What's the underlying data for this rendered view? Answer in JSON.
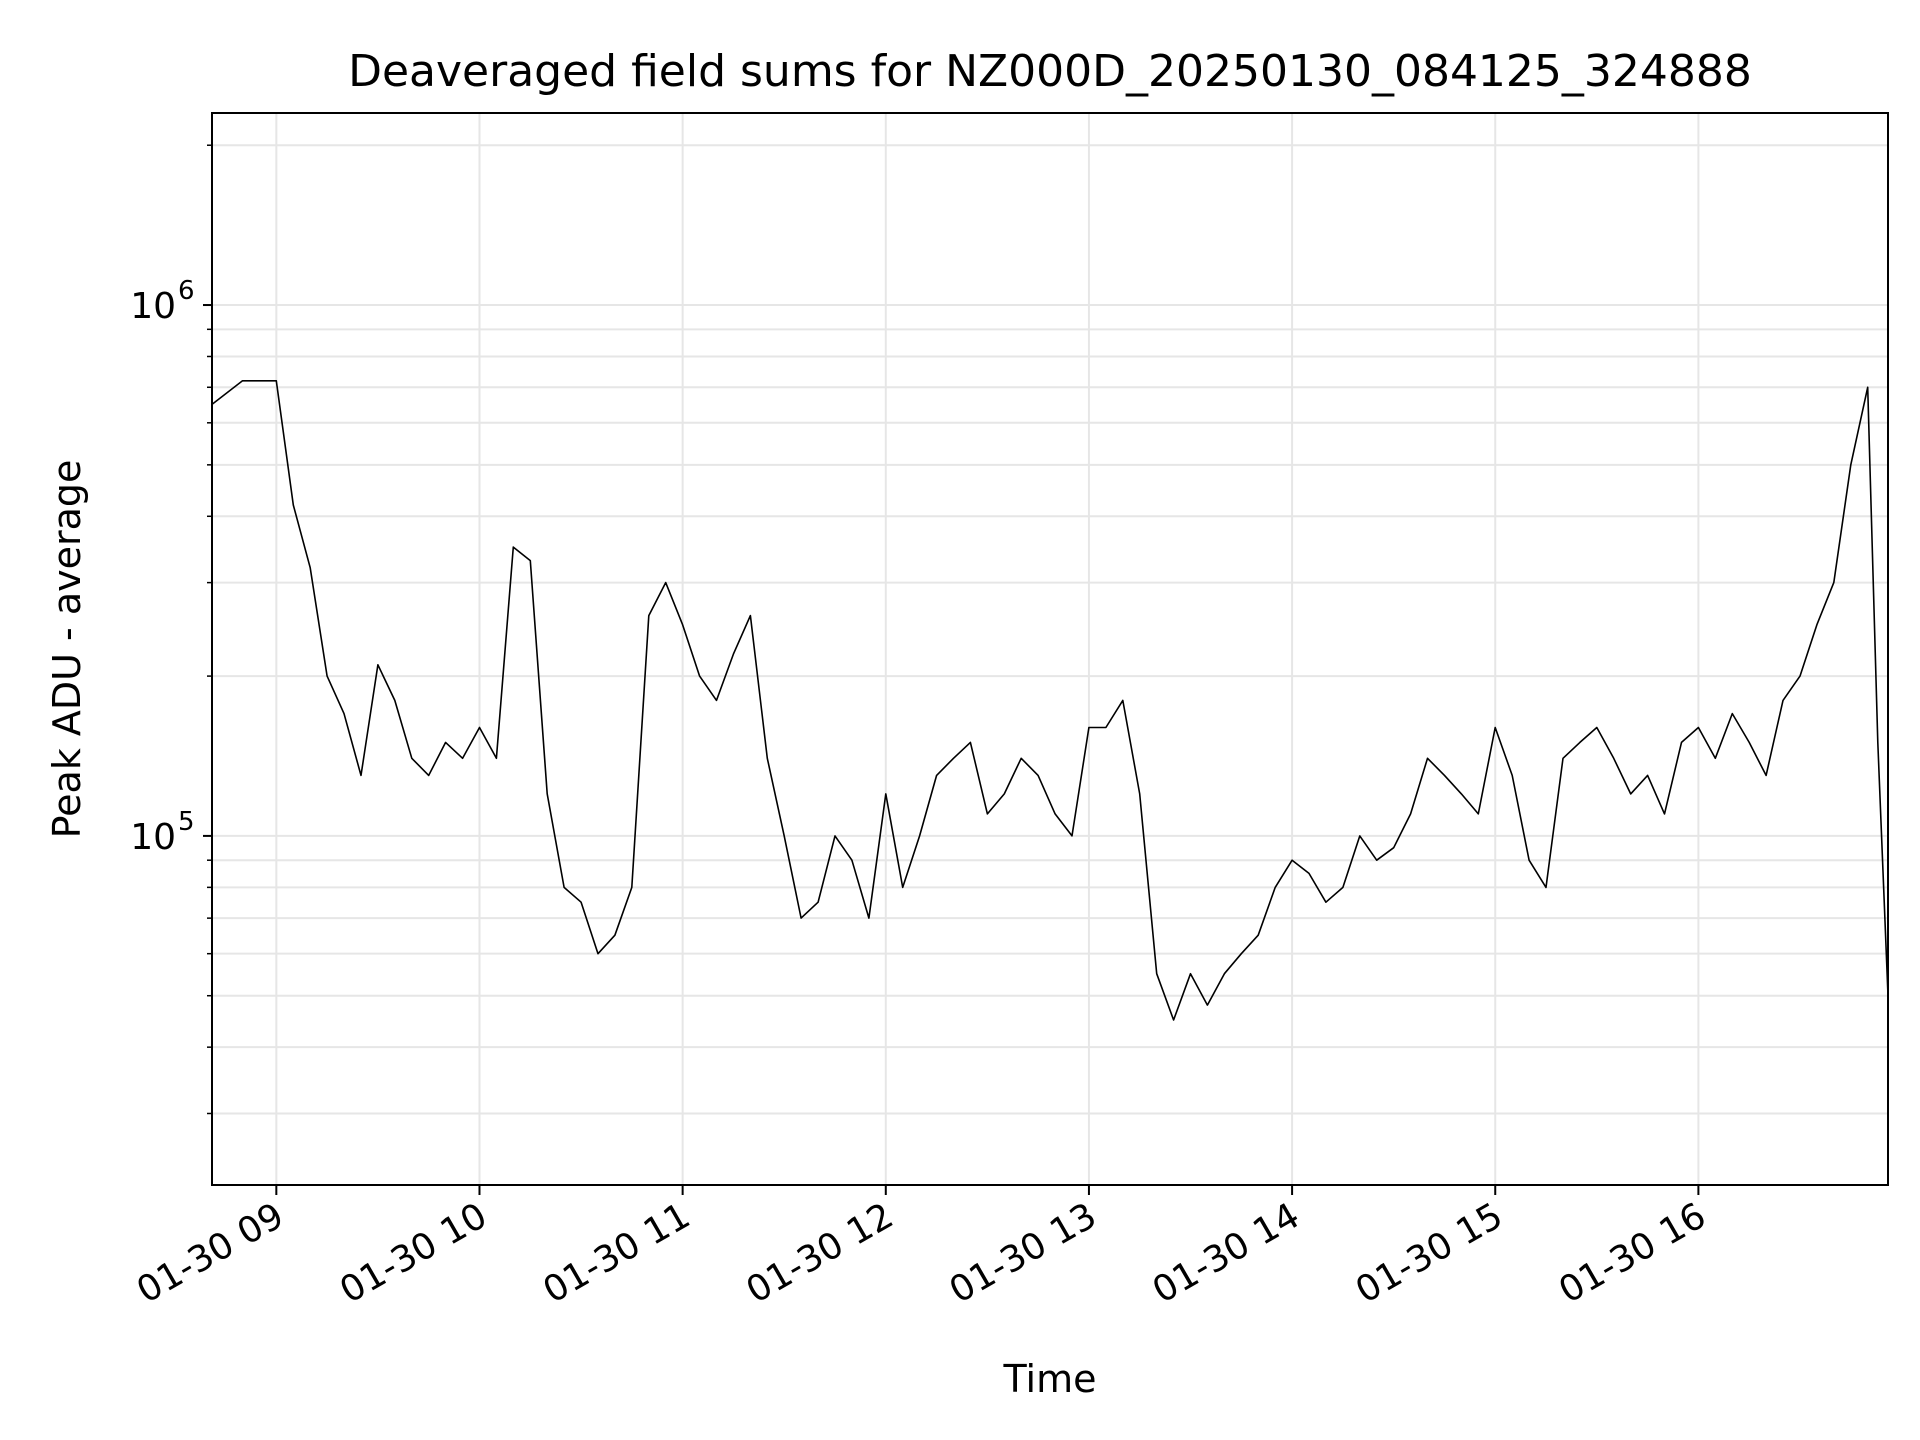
{
  "chart_data": {
    "type": "line",
    "title": "Deaveraged field sums for NZ000D_20250130_084125_324888",
    "xlabel": "Time",
    "ylabel": "Peak ADU - average",
    "yscale": "log",
    "ylim": [
      22000,
      2300000
    ],
    "xlim": [
      "2025-01-30 08:41",
      "2025-01-30 16:56"
    ],
    "grid": true,
    "line_color": "#000000",
    "grid_color": "#e6e6e6",
    "x_ticks": [
      {
        "value": "2025-01-30 09:00",
        "label": "01-30 09"
      },
      {
        "value": "2025-01-30 10:00",
        "label": "01-30 10"
      },
      {
        "value": "2025-01-30 11:00",
        "label": "01-30 11"
      },
      {
        "value": "2025-01-30 12:00",
        "label": "01-30 12"
      },
      {
        "value": "2025-01-30 13:00",
        "label": "01-30 13"
      },
      {
        "value": "2025-01-30 14:00",
        "label": "01-30 14"
      },
      {
        "value": "2025-01-30 15:00",
        "label": "01-30 15"
      },
      {
        "value": "2025-01-30 16:00",
        "label": "01-30 16"
      }
    ],
    "y_ticks": [
      {
        "value": 100000,
        "base": "10",
        "exp": "5"
      },
      {
        "value": 1000000,
        "base": "10",
        "exp": "6"
      }
    ],
    "series": [
      {
        "x": [
          "2025-01-30 08:41",
          "2025-01-30 08:50",
          "2025-01-30 09:00",
          "2025-01-30 09:05",
          "2025-01-30 09:10",
          "2025-01-30 09:15",
          "2025-01-30 09:20",
          "2025-01-30 09:25",
          "2025-01-30 09:30",
          "2025-01-30 09:35",
          "2025-01-30 09:40",
          "2025-01-30 09:45",
          "2025-01-30 09:50",
          "2025-01-30 09:55",
          "2025-01-30 10:00",
          "2025-01-30 10:05",
          "2025-01-30 10:10",
          "2025-01-30 10:15",
          "2025-01-30 10:20",
          "2025-01-30 10:25",
          "2025-01-30 10:30",
          "2025-01-30 10:35",
          "2025-01-30 10:40",
          "2025-01-30 10:45",
          "2025-01-30 10:50",
          "2025-01-30 10:55",
          "2025-01-30 11:00",
          "2025-01-30 11:05",
          "2025-01-30 11:10",
          "2025-01-30 11:15",
          "2025-01-30 11:20",
          "2025-01-30 11:25",
          "2025-01-30 11:30",
          "2025-01-30 11:35",
          "2025-01-30 11:40",
          "2025-01-30 11:45",
          "2025-01-30 11:50",
          "2025-01-30 11:55",
          "2025-01-30 12:00",
          "2025-01-30 12:05",
          "2025-01-30 12:10",
          "2025-01-30 12:15",
          "2025-01-30 12:20",
          "2025-01-30 12:25",
          "2025-01-30 12:30",
          "2025-01-30 12:35",
          "2025-01-30 12:40",
          "2025-01-30 12:45",
          "2025-01-30 12:50",
          "2025-01-30 12:55",
          "2025-01-30 13:00",
          "2025-01-30 13:05",
          "2025-01-30 13:10",
          "2025-01-30 13:15",
          "2025-01-30 13:20",
          "2025-01-30 13:25",
          "2025-01-30 13:30",
          "2025-01-30 13:35",
          "2025-01-30 13:40",
          "2025-01-30 13:45",
          "2025-01-30 13:50",
          "2025-01-30 13:55",
          "2025-01-30 14:00",
          "2025-01-30 14:05",
          "2025-01-30 14:10",
          "2025-01-30 14:15",
          "2025-01-30 14:20",
          "2025-01-30 14:25",
          "2025-01-30 14:30",
          "2025-01-30 14:35",
          "2025-01-30 14:40",
          "2025-01-30 14:45",
          "2025-01-30 14:50",
          "2025-01-30 14:55",
          "2025-01-30 15:00",
          "2025-01-30 15:05",
          "2025-01-30 15:10",
          "2025-01-30 15:15",
          "2025-01-30 15:20",
          "2025-01-30 15:25",
          "2025-01-30 15:30",
          "2025-01-30 15:35",
          "2025-01-30 15:40",
          "2025-01-30 15:45",
          "2025-01-30 15:50",
          "2025-01-30 15:55",
          "2025-01-30 16:00",
          "2025-01-30 16:05",
          "2025-01-30 16:10",
          "2025-01-30 16:15",
          "2025-01-30 16:20",
          "2025-01-30 16:25",
          "2025-01-30 16:30",
          "2025-01-30 16:35",
          "2025-01-30 16:40",
          "2025-01-30 16:45",
          "2025-01-30 16:50",
          "2025-01-30 16:53",
          "2025-01-30 16:56"
        ],
        "y": [
          650000,
          720000,
          720000,
          420000,
          320000,
          200000,
          170000,
          130000,
          210000,
          180000,
          140000,
          130000,
          150000,
          140000,
          160000,
          140000,
          350000,
          330000,
          120000,
          80000,
          75000,
          60000,
          65000,
          80000,
          260000,
          300000,
          250000,
          200000,
          180000,
          220000,
          260000,
          140000,
          100000,
          70000,
          75000,
          100000,
          90000,
          70000,
          120000,
          80000,
          100000,
          130000,
          140000,
          150000,
          110000,
          120000,
          140000,
          130000,
          110000,
          100000,
          160000,
          160000,
          180000,
          120000,
          55000,
          45000,
          55000,
          48000,
          55000,
          60000,
          65000,
          80000,
          90000,
          85000,
          75000,
          80000,
          100000,
          90000,
          95000,
          110000,
          140000,
          130000,
          120000,
          110000,
          160000,
          130000,
          90000,
          80000,
          140000,
          150000,
          160000,
          140000,
          120000,
          130000,
          110000,
          150000,
          160000,
          140000,
          170000,
          150000,
          130000,
          180000,
          200000,
          250000,
          300000,
          500000,
          700000,
          150000,
          50000
        ]
      }
    ]
  }
}
